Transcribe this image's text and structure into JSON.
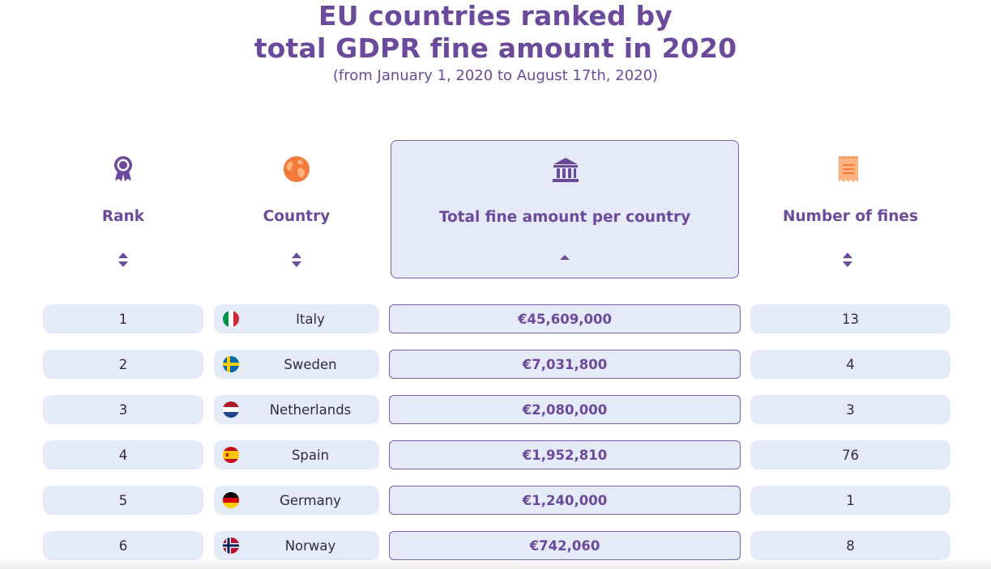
{
  "title": {
    "line1": "EU countries ranked by",
    "line2": "total GDPR fine amount in 2020",
    "subtitle": "(from January 1, 2020 to August 17th, 2020)"
  },
  "colors": {
    "accent": "#6b4a9c",
    "cell_bg": "#e4eaf7",
    "icon_orange": "#f47a3c"
  },
  "headers": {
    "rank": {
      "label": "Rank",
      "icon": "award-ribbon-icon",
      "sort": "both"
    },
    "country": {
      "label": "Country",
      "icon": "globe-icon",
      "sort": "both"
    },
    "amount": {
      "label": "Total fine amount per country",
      "icon": "bank-building-icon",
      "sort": "ascending"
    },
    "fines": {
      "label": "Number of fines",
      "icon": "receipt-icon",
      "sort": "both"
    }
  },
  "rows": [
    {
      "rank": "1",
      "country": "Italy",
      "flag": "italy-flag-icon",
      "amount": "€45,609,000",
      "fines": "13"
    },
    {
      "rank": "2",
      "country": "Sweden",
      "flag": "sweden-flag-icon",
      "amount": "€7,031,800",
      "fines": "4"
    },
    {
      "rank": "3",
      "country": "Netherlands",
      "flag": "netherlands-flag-icon",
      "amount": "€2,080,000",
      "fines": "3"
    },
    {
      "rank": "4",
      "country": "Spain",
      "flag": "spain-flag-icon",
      "amount": "€1,952,810",
      "fines": "76"
    },
    {
      "rank": "5",
      "country": "Germany",
      "flag": "germany-flag-icon",
      "amount": "€1,240,000",
      "fines": "1"
    },
    {
      "rank": "6",
      "country": "Norway",
      "flag": "norway-flag-icon",
      "amount": "€742,060",
      "fines": "8"
    }
  ]
}
